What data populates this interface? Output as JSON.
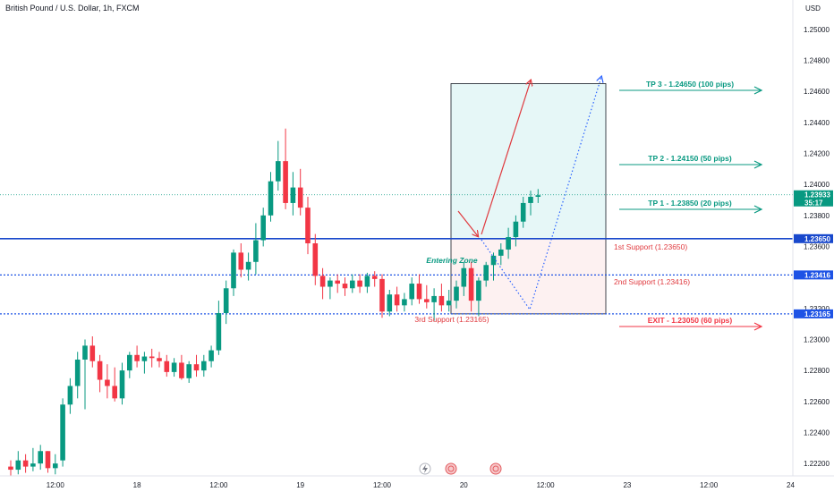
{
  "title": "British Pound / U.S. Dollar, 1h, FXCM",
  "currency": "USD",
  "colors": {
    "up": "#089981",
    "down": "#f23645",
    "level": "#1e53e5",
    "levelDark": "#1848cc",
    "profitZone": "#e6f7f7",
    "lossZone": "#fdf1f1",
    "arrowRed": "#e0393e",
    "arrowBlue": "#2962ff"
  },
  "chart_data": {
    "type": "candlestick",
    "ylim": [
      1.2212,
      1.2512
    ],
    "yticks": [
      "1.25000",
      "1.24800",
      "1.24600",
      "1.24400",
      "1.24200",
      "1.24000",
      "1.23800",
      "1.23600",
      "1.23200",
      "1.23000",
      "1.22800",
      "1.22600",
      "1.22400",
      "1.22200"
    ],
    "xticks": [
      {
        "x": 6,
        "label": "12:00"
      },
      {
        "x": 17,
        "label": "18"
      },
      {
        "x": 28,
        "label": "12:00"
      },
      {
        "x": 39,
        "label": "19"
      },
      {
        "x": 50,
        "label": "12:00"
      },
      {
        "x": 61,
        "label": "20"
      },
      {
        "x": 72,
        "label": "12:00"
      },
      {
        "x": 83,
        "label": "23"
      },
      {
        "x": 94,
        "label": "12:00"
      },
      {
        "x": 105,
        "label": "24"
      }
    ],
    "candles": [
      [
        1.2218,
        1.2222,
        1.2212,
        1.2216
      ],
      [
        1.2216,
        1.2228,
        1.2213,
        1.2222
      ],
      [
        1.2222,
        1.2226,
        1.2214,
        1.2218
      ],
      [
        1.2218,
        1.223,
        1.2215,
        1.222
      ],
      [
        1.222,
        1.2232,
        1.2216,
        1.2228
      ],
      [
        1.2228,
        1.2228,
        1.2214,
        1.2217
      ],
      [
        1.2217,
        1.2226,
        1.2213,
        1.222
      ],
      [
        1.2222,
        1.2262,
        1.2218,
        1.2258
      ],
      [
        1.2258,
        1.2275,
        1.2252,
        1.227
      ],
      [
        1.227,
        1.2292,
        1.2262,
        1.2287
      ],
      [
        1.2287,
        1.23,
        1.2255,
        1.2296
      ],
      [
        1.2296,
        1.2302,
        1.2282,
        1.2286
      ],
      [
        1.2286,
        1.229,
        1.2266,
        1.2274
      ],
      [
        1.2274,
        1.2284,
        1.2262,
        1.227
      ],
      [
        1.227,
        1.2282,
        1.226,
        1.2262
      ],
      [
        1.2262,
        1.2285,
        1.2258,
        1.228
      ],
      [
        1.228,
        1.2292,
        1.2275,
        1.229
      ],
      [
        1.229,
        1.2296,
        1.2282,
        1.2286
      ],
      [
        1.2286,
        1.2292,
        1.2278,
        1.2289
      ],
      [
        1.2289,
        1.2294,
        1.2282,
        1.2288
      ],
      [
        1.2288,
        1.2292,
        1.2282,
        1.2286
      ],
      [
        1.2286,
        1.229,
        1.2276,
        1.2279
      ],
      [
        1.2279,
        1.2288,
        1.2276,
        1.2285
      ],
      [
        1.2285,
        1.229,
        1.2274,
        1.2275
      ],
      [
        1.2275,
        1.2286,
        1.2272,
        1.2284
      ],
      [
        1.2284,
        1.229,
        1.2276,
        1.228
      ],
      [
        1.228,
        1.229,
        1.2276,
        1.2286
      ],
      [
        1.2286,
        1.2296,
        1.2282,
        1.2293
      ],
      [
        1.2293,
        1.2325,
        1.229,
        1.2317
      ],
      [
        1.2317,
        1.2338,
        1.231,
        1.2333
      ],
      [
        1.2333,
        1.2358,
        1.2328,
        1.2356
      ],
      [
        1.2356,
        1.2362,
        1.234,
        1.2345
      ],
      [
        1.2345,
        1.2356,
        1.2338,
        1.235
      ],
      [
        1.235,
        1.2375,
        1.2342,
        1.2364
      ],
      [
        1.2364,
        1.2385,
        1.236,
        1.238
      ],
      [
        1.238,
        1.2408,
        1.2376,
        1.2402
      ],
      [
        1.2402,
        1.2428,
        1.2396,
        1.2415
      ],
      [
        1.2415,
        1.2436,
        1.2384,
        1.2388
      ],
      [
        1.2388,
        1.2408,
        1.238,
        1.2398
      ],
      [
        1.2398,
        1.241,
        1.238,
        1.2385
      ],
      [
        1.2385,
        1.2392,
        1.2355,
        1.2362
      ],
      [
        1.2362,
        1.2368,
        1.2335,
        1.2341
      ],
      [
        1.2341,
        1.2346,
        1.2326,
        1.2334
      ],
      [
        1.2334,
        1.234,
        1.2326,
        1.2338
      ],
      [
        1.2338,
        1.2342,
        1.233,
        1.2336
      ],
      [
        1.2336,
        1.234,
        1.2328,
        1.2333
      ],
      [
        1.2333,
        1.2342,
        1.233,
        1.2338
      ],
      [
        1.2338,
        1.2342,
        1.233,
        1.2334
      ],
      [
        1.2334,
        1.2343,
        1.233,
        1.2341
      ],
      [
        1.2341,
        1.2344,
        1.2334,
        1.2339
      ],
      [
        1.2339,
        1.2342,
        1.2314,
        1.2318
      ],
      [
        1.2318,
        1.2332,
        1.2315,
        1.2329
      ],
      [
        1.2329,
        1.2334,
        1.2318,
        1.2322
      ],
      [
        1.2322,
        1.233,
        1.2318,
        1.2326
      ],
      [
        1.2326,
        1.234,
        1.2322,
        1.2336
      ],
      [
        1.2336,
        1.2342,
        1.2323,
        1.2326
      ],
      [
        1.2326,
        1.2335,
        1.232,
        1.2324
      ],
      [
        1.2324,
        1.2333,
        1.2312,
        1.2328
      ],
      [
        1.2328,
        1.2336,
        1.2318,
        1.2322
      ],
      [
        1.2322,
        1.2332,
        1.2318,
        1.2325
      ],
      [
        1.2325,
        1.2338,
        1.232,
        1.2334
      ],
      [
        1.2334,
        1.235,
        1.2328,
        1.2346
      ],
      [
        1.2346,
        1.235,
        1.2318,
        1.2325
      ],
      [
        1.2325,
        1.234,
        1.2315,
        1.2338
      ],
      [
        1.2338,
        1.235,
        1.2334,
        1.2348
      ],
      [
        1.2348,
        1.2356,
        1.2338,
        1.2354
      ],
      [
        1.2354,
        1.2362,
        1.2348,
        1.2358
      ],
      [
        1.2358,
        1.2372,
        1.2352,
        1.2366
      ],
      [
        1.2366,
        1.238,
        1.236,
        1.2376
      ],
      [
        1.2376,
        1.2392,
        1.2372,
        1.2388
      ],
      [
        1.2388,
        1.2396,
        1.238,
        1.2392
      ],
      [
        1.2392,
        1.2397,
        1.2388,
        1.2393
      ]
    ]
  },
  "axis": {
    "priceTags": [
      {
        "value": 1.23933,
        "label": "1.23933",
        "countdown": "35:17",
        "color": "#089981"
      },
      {
        "value": 1.2365,
        "label": "1.23650",
        "color": "#1848cc"
      },
      {
        "value": 1.23416,
        "label": "1.23416",
        "color": "#1e53e5"
      },
      {
        "value": 1.23165,
        "label": "1.23165",
        "color": "#1e53e5"
      }
    ]
  },
  "annotations": {
    "tp3": "TP 3 - 1.24650 (100 pips)",
    "tp2": "TP 2 - 1.24150 (50 pips)",
    "tp1": "TP 1 - 1.23850 (20 pips)",
    "exit": "EXIT - 1.23050 (60 pips)",
    "support1": "1st Support (1.23650)",
    "support2": "2nd Support (1.23416)",
    "support3": "3rd Support (1.23165)",
    "entering": "Entering Zone"
  },
  "levels": {
    "tp3": 1.2465,
    "tp2": 1.2415,
    "tp1": 1.2385,
    "exit": 1.2305,
    "support1": 1.2365,
    "support2": 1.23416,
    "support3": 1.23165,
    "current": 1.23933
  }
}
